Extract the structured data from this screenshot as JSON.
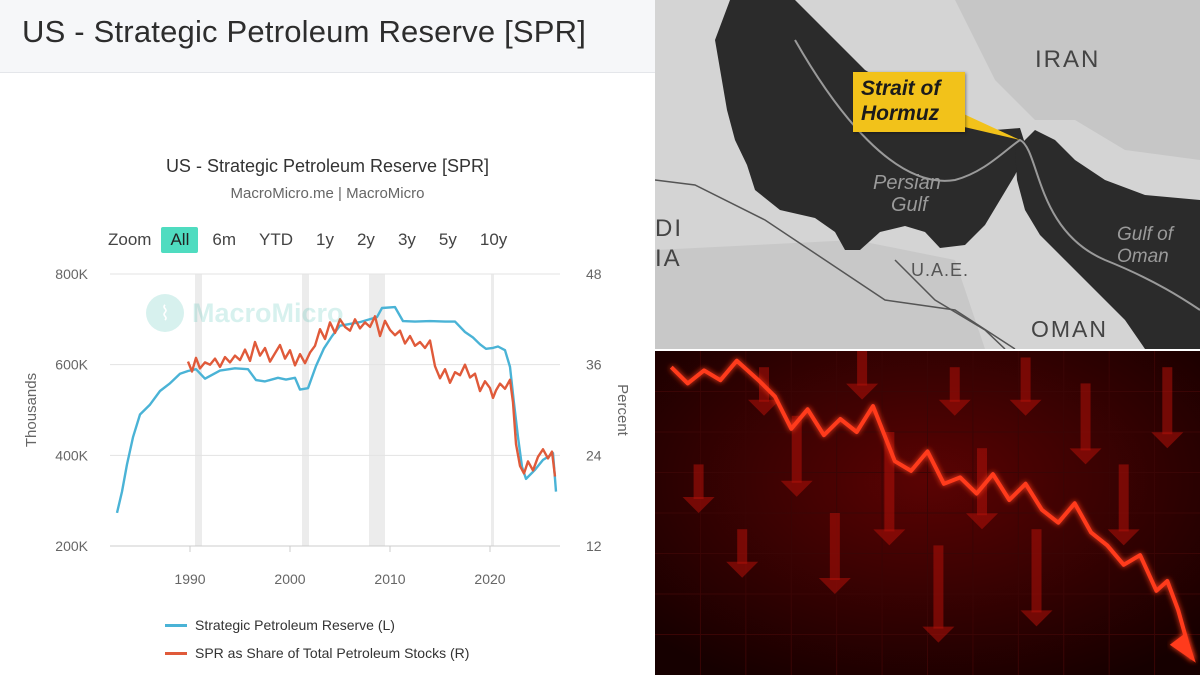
{
  "header": {
    "title": "US - Strategic Petroleum Reserve [SPR]"
  },
  "chart_data": {
    "type": "line",
    "title": "US - Strategic Petroleum Reserve [SPR]",
    "subtitle": "MacroMicro.me | MacroMicro",
    "watermark": "MacroMicro",
    "zoom": {
      "label": "Zoom",
      "options": [
        "All",
        "6m",
        "YTD",
        "1y",
        "2y",
        "3y",
        "5y",
        "10y"
      ],
      "selected": "All"
    },
    "x_ticks": [
      "1990",
      "2000",
      "2010",
      "2020"
    ],
    "xlim": [
      1982,
      2027
    ],
    "y_left": {
      "label": "Thousands",
      "ticks": [
        "200K",
        "400K",
        "600K",
        "800K"
      ],
      "ylim": [
        200000,
        800000
      ]
    },
    "y_right": {
      "label": "Percent",
      "ticks": [
        "12",
        "24",
        "36",
        "48"
      ],
      "ylim": [
        12,
        48
      ]
    },
    "recession_bands": [
      [
        1990.5,
        1991.2
      ],
      [
        2001.2,
        2001.9
      ],
      [
        2007.9,
        2009.5
      ],
      [
        2020.1,
        2020.4
      ]
    ],
    "series": [
      {
        "name": "Strategic Petroleum Reserve (L)",
        "axis": "left",
        "color": "#4ab3d6",
        "x": [
          1982.7,
          1983.2,
          1983.7,
          1984.3,
          1985.0,
          1986.0,
          1987.0,
          1988.0,
          1989.0,
          1989.8,
          1990.6,
          1991.5,
          1993.0,
          1994.5,
          1995.8,
          1996.6,
          1997.5,
          1998.8,
          1999.6,
          2000.5,
          2001.0,
          2001.8,
          2002.6,
          2003.4,
          2004.2,
          2005.0,
          2005.8,
          2007.0,
          2008.1,
          2008.7,
          2009.2,
          2010.5,
          2011.3,
          2012.5,
          2014.0,
          2015.5,
          2016.5,
          2017.5,
          2018.3,
          2019.0,
          2019.6,
          2020.3,
          2020.8,
          2021.5,
          2022.0,
          2022.4,
          2022.8,
          2023.2,
          2023.6,
          2024.5,
          2025.3,
          2025.9,
          2026.3,
          2026.6
        ],
        "y": [
          273000,
          320000,
          380000,
          440000,
          490000,
          512000,
          542000,
          559000,
          580000,
          586000,
          590000,
          569000,
          587000,
          592000,
          590000,
          566000,
          563000,
          571000,
          567000,
          571000,
          545000,
          548000,
          597000,
          636000,
          663000,
          686000,
          689000,
          694000,
          701000,
          705000,
          725000,
          727000,
          696000,
          695000,
          696000,
          695000,
          695000,
          672000,
          660000,
          645000,
          635000,
          637000,
          640000,
          632000,
          595000,
          515000,
          440000,
          375000,
          348000,
          368000,
          390000,
          398000,
          405000,
          320000
        ]
      },
      {
        "name": "SPR as Share of Total Petroleum Stocks (R)",
        "axis": "right",
        "color": "#e05a3a",
        "x": [
          1989.8,
          1990.2,
          1990.6,
          1991.0,
          1991.5,
          1992.0,
          1992.5,
          1993.0,
          1993.5,
          1994.0,
          1994.5,
          1995.0,
          1995.5,
          1996.0,
          1996.5,
          1997.0,
          1997.5,
          1998.0,
          1998.5,
          1999.0,
          1999.5,
          2000.0,
          2000.5,
          2001.0,
          2001.5,
          2002.0,
          2002.5,
          2003.0,
          2003.5,
          2004.0,
          2004.5,
          2005.0,
          2005.5,
          2006.0,
          2006.5,
          2007.0,
          2007.5,
          2008.0,
          2008.5,
          2009.0,
          2009.5,
          2010.0,
          2010.5,
          2011.0,
          2011.5,
          2012.0,
          2012.5,
          2013.0,
          2013.5,
          2014.0,
          2014.5,
          2015.0,
          2015.5,
          2016.0,
          2016.5,
          2017.0,
          2017.5,
          2018.0,
          2018.5,
          2019.0,
          2019.5,
          2020.0,
          2020.3,
          2020.6,
          2021.0,
          2021.5,
          2022.0,
          2022.3,
          2022.6,
          2023.0,
          2023.4,
          2023.8,
          2024.3,
          2024.8,
          2025.3,
          2025.8,
          2026.2,
          2026.5
        ],
        "y": [
          36.4,
          35.1,
          36.9,
          35.5,
          36.3,
          36.0,
          36.8,
          35.7,
          37.0,
          36.3,
          37.2,
          36.6,
          38.0,
          36.5,
          39.0,
          37.2,
          38.2,
          36.4,
          37.5,
          38.6,
          36.8,
          37.9,
          35.9,
          37.4,
          36.2,
          37.6,
          38.5,
          40.7,
          39.4,
          41.6,
          40.2,
          42.0,
          41.0,
          40.5,
          42.0,
          40.8,
          41.6,
          41.0,
          42.4,
          39.8,
          41.8,
          40.6,
          39.9,
          40.5,
          38.8,
          39.8,
          38.5,
          39.0,
          38.2,
          39.2,
          35.8,
          34.2,
          35.4,
          33.6,
          35.0,
          34.6,
          36.0,
          34.3,
          34.8,
          32.5,
          33.8,
          32.9,
          31.6,
          32.6,
          33.5,
          32.8,
          34.0,
          31.0,
          25.5,
          22.6,
          21.6,
          23.2,
          22.0,
          23.8,
          24.8,
          23.6,
          24.5,
          21.2
        ]
      }
    ]
  },
  "map": {
    "strait_label_line1": "Strait of",
    "strait_label_line2": "Hormuz",
    "labels": {
      "iran": "IRAN",
      "persian_line1": "Persian",
      "persian_line2": "Gulf",
      "uae": "U.A.E.",
      "oman": "OMAN",
      "gulf_oman_line1": "Gulf of",
      "gulf_oman_line2": "Oman",
      "saudi_line1": "DI",
      "saudi_line2": "IA"
    }
  },
  "crash": {
    "colors": {
      "background": "#1a0000",
      "line": "#ff3a1a",
      "arrows": "#b0100a"
    },
    "trend": [
      [
        0.03,
        0.05
      ],
      [
        0.06,
        0.1
      ],
      [
        0.09,
        0.06
      ],
      [
        0.12,
        0.09
      ],
      [
        0.15,
        0.03
      ],
      [
        0.19,
        0.09
      ],
      [
        0.22,
        0.14
      ],
      [
        0.25,
        0.24
      ],
      [
        0.28,
        0.18
      ],
      [
        0.31,
        0.26
      ],
      [
        0.34,
        0.21
      ],
      [
        0.37,
        0.25
      ],
      [
        0.4,
        0.17
      ],
      [
        0.44,
        0.34
      ],
      [
        0.47,
        0.37
      ],
      [
        0.5,
        0.31
      ],
      [
        0.53,
        0.41
      ],
      [
        0.56,
        0.39
      ],
      [
        0.59,
        0.44
      ],
      [
        0.62,
        0.38
      ],
      [
        0.65,
        0.46
      ],
      [
        0.68,
        0.41
      ],
      [
        0.71,
        0.49
      ],
      [
        0.74,
        0.53
      ],
      [
        0.77,
        0.47
      ],
      [
        0.8,
        0.56
      ],
      [
        0.83,
        0.6
      ],
      [
        0.86,
        0.66
      ],
      [
        0.89,
        0.63
      ],
      [
        0.92,
        0.74
      ],
      [
        0.94,
        0.71
      ],
      [
        0.96,
        0.8
      ],
      [
        0.985,
        0.95
      ]
    ]
  },
  "legend": [
    {
      "label": "Strategic Petroleum Reserve (L)",
      "color": "#4ab3d6"
    },
    {
      "label": "SPR as Share of Total Petroleum Stocks (R)",
      "color": "#e05a3a"
    }
  ]
}
